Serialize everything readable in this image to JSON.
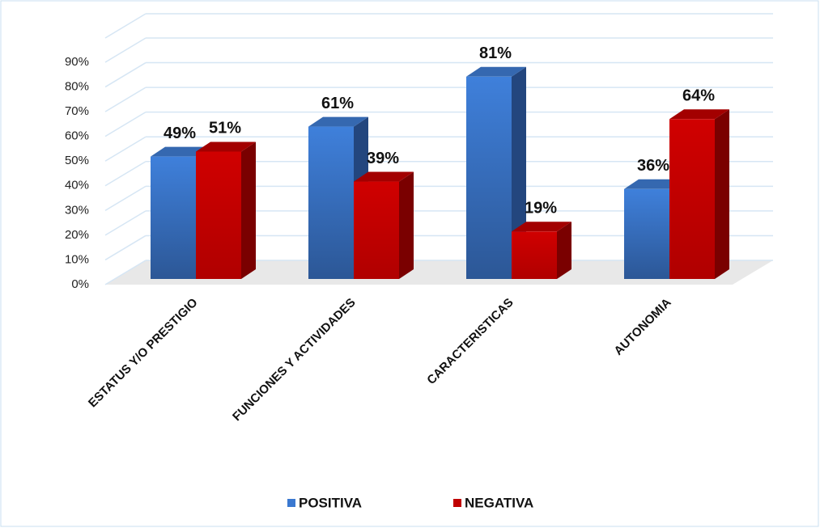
{
  "chart_data": {
    "type": "bar3d",
    "categories": [
      "ESTATUS Y/O PRESTIGIO",
      "FUNCIONES Y ACTIVIDADES",
      "CARACTERISTICAS",
      "AUTONOMIA"
    ],
    "series": [
      {
        "name": "POSITIVA",
        "color": "#3a78d0",
        "values": [
          49,
          61,
          81,
          36
        ],
        "value_labels": [
          "49%",
          "61%",
          "81%",
          "36%"
        ]
      },
      {
        "name": "NEGATIVA",
        "color": "#c00000",
        "values": [
          51,
          39,
          19,
          64
        ],
        "value_labels": [
          "51%",
          "39%",
          "19%",
          "64%"
        ]
      }
    ],
    "ylim": [
      0,
      90
    ],
    "yticks": [
      {
        "value": 0,
        "label": "0%"
      },
      {
        "value": 10,
        "label": "10%"
      },
      {
        "value": 20,
        "label": "20%"
      },
      {
        "value": 30,
        "label": "30%"
      },
      {
        "value": 40,
        "label": "40%"
      },
      {
        "value": 50,
        "label": "50%"
      },
      {
        "value": 60,
        "label": "60%"
      },
      {
        "value": 70,
        "label": "70%"
      },
      {
        "value": 80,
        "label": "80%"
      },
      {
        "value": 90,
        "label": "90%"
      }
    ],
    "grid": true,
    "legend": "bottom"
  }
}
